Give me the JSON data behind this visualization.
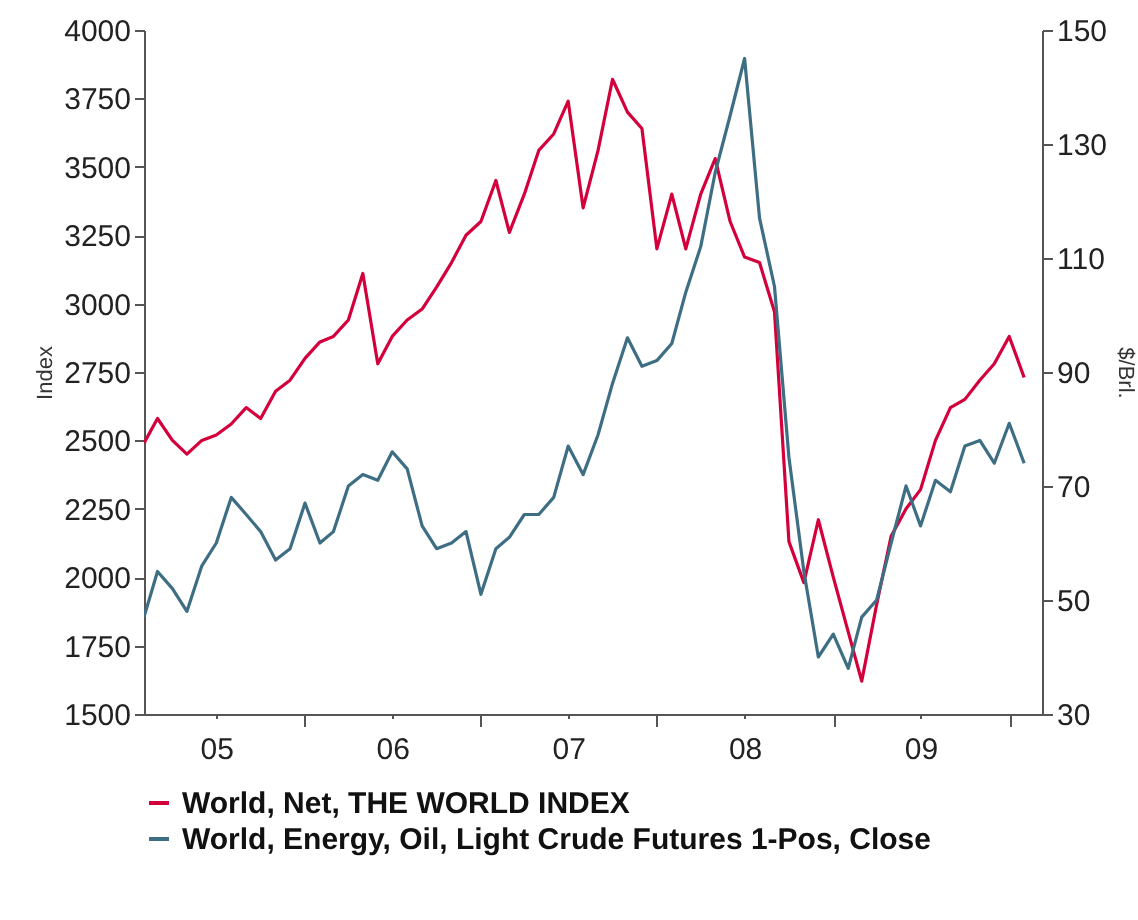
{
  "chart_data": {
    "type": "line",
    "x": [
      "2005-02-01",
      "2005-03-01",
      "2005-04-01",
      "2005-05-01",
      "2005-06-01",
      "2005-07-01",
      "2005-08-01",
      "2005-09-01",
      "2005-10-01",
      "2005-11-01",
      "2005-12-01",
      "2006-01-01",
      "2006-02-01",
      "2006-03-01",
      "2006-04-01",
      "2006-05-01",
      "2006-06-01",
      "2006-07-01",
      "2006-08-01",
      "2006-09-01",
      "2006-10-01",
      "2006-11-01",
      "2006-12-01",
      "2007-01-01",
      "2007-02-01",
      "2007-03-01",
      "2007-04-01",
      "2007-05-01",
      "2007-06-01",
      "2007-07-01",
      "2007-08-01",
      "2007-09-01",
      "2007-10-01",
      "2007-11-01",
      "2007-12-01",
      "2008-01-01",
      "2008-02-01",
      "2008-03-01",
      "2008-04-01",
      "2008-05-01",
      "2008-06-01",
      "2008-07-01",
      "2008-08-01",
      "2008-09-01",
      "2008-10-01",
      "2008-11-01",
      "2008-12-01",
      "2009-01-01",
      "2009-02-01",
      "2009-03-01",
      "2009-04-01",
      "2009-05-01",
      "2009-06-01",
      "2009-07-01",
      "2009-08-01",
      "2009-09-01",
      "2009-10-01",
      "2009-11-01",
      "2009-12-01",
      "2010-01-01",
      "2010-02-01"
    ],
    "series": [
      {
        "name": "World, Net, THE WORLD INDEX",
        "color": "#d4003c",
        "values": [
          2490,
          2580,
          2500,
          2450,
          2500,
          2520,
          2560,
          2620,
          2580,
          2680,
          2720,
          2800,
          2860,
          2880,
          2940,
          3110,
          2780,
          2880,
          2940,
          2980,
          3060,
          3150,
          3250,
          3300,
          3450,
          3260,
          3400,
          3560,
          3620,
          3740,
          3350,
          3560,
          3820,
          3700,
          3640,
          3200,
          3400,
          3200,
          3400,
          3530,
          3300,
          3170,
          3150,
          2970,
          2130,
          1980,
          2210,
          2000,
          1800,
          1620,
          1900,
          2150,
          2250,
          2320,
          2500,
          2620,
          2650,
          2720,
          2780,
          2880,
          2730
        ]
      },
      {
        "name": "World, Energy, Oil, Light Crude Futures 1-Pos, Close",
        "color": "#3e6e84",
        "axis": "y2",
        "values": [
          47,
          55,
          52,
          48,
          56,
          60,
          68,
          65,
          62,
          57,
          59,
          67,
          60,
          62,
          70,
          72,
          71,
          76,
          73,
          63,
          59,
          60,
          62,
          51,
          59,
          61,
          65,
          65,
          68,
          77,
          72,
          79,
          88,
          96,
          91,
          92,
          95,
          104,
          112,
          125,
          135,
          145,
          117,
          105,
          75,
          55,
          40,
          44,
          38,
          47,
          50,
          60,
          70,
          63,
          71,
          69,
          77,
          78,
          74,
          81,
          74
        ]
      }
    ],
    "ylabel": "Index",
    "y2label": "$/Brl.",
    "xlim": [
      "2005-02-01",
      "2010-03-10"
    ],
    "xticks": [
      {
        "value": "2005-07-01",
        "label": "05"
      },
      {
        "value": "2006-01-01",
        "label": null
      },
      {
        "value": "2006-07-01",
        "label": "06"
      },
      {
        "value": "2007-01-01",
        "label": null
      },
      {
        "value": "2007-07-01",
        "label": "07"
      },
      {
        "value": "2008-01-01",
        "label": null
      },
      {
        "value": "2008-07-01",
        "label": "08"
      },
      {
        "value": "2009-01-01",
        "label": null
      },
      {
        "value": "2009-07-01",
        "label": "09"
      },
      {
        "value": "2010-01-01",
        "label": null
      }
    ],
    "ylim": [
      1500,
      4000
    ],
    "yticks": [
      1500,
      1750,
      2000,
      2250,
      2500,
      2750,
      3000,
      3250,
      3500,
      3750,
      4000
    ],
    "y2lim": [
      30,
      150
    ],
    "y2ticks": [
      30,
      50,
      70,
      90,
      110,
      130,
      150
    ],
    "legend": "bottom",
    "grid": false
  }
}
